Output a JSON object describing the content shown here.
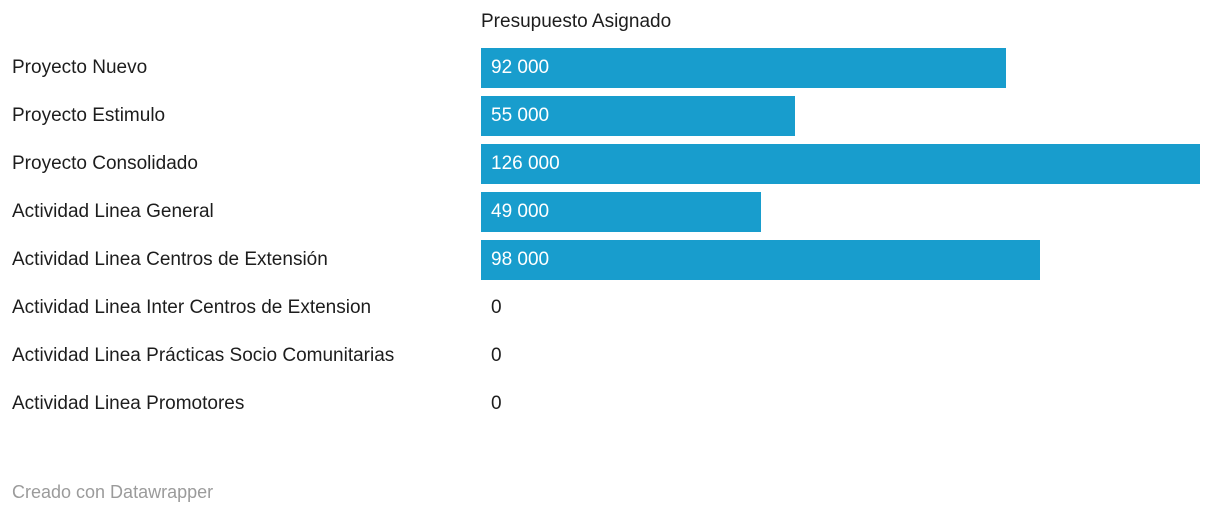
{
  "header": {
    "column_label": "Presupuesto Asignado"
  },
  "chart_data": {
    "type": "bar",
    "orientation": "horizontal",
    "title": "Presupuesto Asignado",
    "categories": [
      "Proyecto Nuevo",
      "Proyecto Estimulo",
      "Proyecto Consolidado",
      "Actividad Linea General",
      "Actividad Linea Centros de Extensión",
      "Actividad Linea Inter Centros de Extension",
      "Actividad Linea Prácticas Socio Comunitarias",
      "Actividad Linea Promotores"
    ],
    "values": [
      92000,
      55000,
      126000,
      49000,
      98000,
      0,
      0,
      0
    ],
    "value_labels": [
      "92 000",
      "55 000",
      "126 000",
      "49 000",
      "98 000",
      "0",
      "0",
      "0"
    ],
    "xlim": [
      0,
      126000
    ],
    "grid": false,
    "legend": "none",
    "value_label_position": "inside-start"
  },
  "footer": {
    "attribution": "Creado con Datawrapper"
  },
  "colors": {
    "bar": "#189dcd",
    "label_text": "#1d1d1d",
    "bar_value_text": "#ffffff",
    "zero_value_text": "#1d1d1d",
    "attribution_text": "#9b9b9b",
    "background": "#ffffff"
  }
}
